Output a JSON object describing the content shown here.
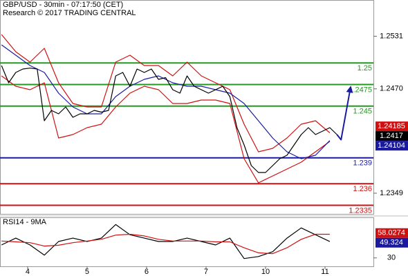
{
  "chart_data": [
    {
      "type": "line",
      "title": "GBP/USD - 30min - 07:17:50 (CET)",
      "subtitle": "Research © 2017 TRADING CENTRAL",
      "xlim": [
        0.535,
        6.814
      ],
      "ylim": [
        1.2325,
        1.2573
      ],
      "yticks": [
        1.2531,
        {
          "value": 1.247,
          "label": "1.2470"
        },
        1.2349
      ],
      "levels": [
        {
          "value": 1.25,
          "color": "#1f9a1f"
        },
        {
          "value": 1.2475,
          "color": "#1f9a1f"
        },
        {
          "value": 1.245,
          "color": "#1f9a1f"
        },
        {
          "value": 1.239,
          "color": "#1a1aa0"
        },
        {
          "value": 1.236,
          "color": "#d01010"
        },
        {
          "value": 1.2335,
          "color": "#d01010"
        }
      ],
      "series": [
        {
          "color": "#d01010",
          "x": [
            0.56,
            0.8,
            1.04,
            1.28,
            1.52,
            1.76,
            2.0,
            2.24,
            2.48,
            2.72,
            2.96,
            3.2,
            3.44,
            3.68,
            3.92,
            4.16,
            4.4,
            4.64,
            4.88,
            5.12,
            5.36,
            5.6,
            5.84,
            6.08
          ],
          "values": [
            1.2533,
            1.2513,
            1.2501,
            1.2517,
            1.2477,
            1.2453,
            1.2449,
            1.2449,
            1.2501,
            1.2509,
            1.2497,
            1.2497,
            1.2485,
            1.2501,
            1.2485,
            1.2477,
            1.2469,
            1.2429,
            1.2397,
            1.2401,
            1.2413,
            1.2429,
            1.2433,
            1.2419
          ]
        },
        {
          "color": "#d01010",
          "x": [
            0.56,
            0.8,
            1.04,
            1.28,
            1.52,
            1.76,
            2.0,
            2.24,
            2.48,
            2.72,
            2.96,
            3.2,
            3.44,
            3.68,
            3.92,
            4.16,
            4.4,
            4.64,
            4.88,
            5.12,
            5.36,
            5.6,
            5.84,
            6.08
          ],
          "values": [
            1.2485,
            1.2473,
            1.2469,
            1.2477,
            1.2413,
            1.2417,
            1.2425,
            1.2429,
            1.2449,
            1.2465,
            1.2473,
            1.2469,
            1.2453,
            1.2453,
            1.2457,
            1.2457,
            1.2453,
            1.2389,
            1.2361,
            1.2369,
            1.2377,
            1.2385,
            1.2397,
            1.2409
          ]
        },
        {
          "color": "#1a1aa0",
          "x": [
            0.56,
            0.8,
            1.04,
            1.28,
            1.52,
            1.76,
            2.0,
            2.24,
            2.48,
            2.72,
            2.96,
            3.2,
            3.44,
            3.68,
            3.92,
            4.16,
            4.4,
            4.64,
            4.88,
            5.12,
            5.36,
            5.6,
            5.84,
            6.08
          ],
          "values": [
            1.2521,
            1.2509,
            1.2497,
            1.2489,
            1.2465,
            1.2449,
            1.2441,
            1.2441,
            1.2461,
            1.2473,
            1.2481,
            1.2485,
            1.2477,
            1.2473,
            1.2473,
            1.2469,
            1.2465,
            1.2453,
            1.2433,
            1.2413,
            1.2397,
            1.2389,
            1.2393,
            1.241
          ]
        },
        {
          "color": "#000000",
          "x": [
            0.56,
            0.68,
            0.8,
            0.92,
            1.04,
            1.16,
            1.28,
            1.4,
            1.52,
            1.64,
            1.76,
            1.88,
            2.0,
            2.12,
            2.24,
            2.36,
            2.48,
            2.6,
            2.72,
            2.84,
            2.96,
            3.08,
            3.2,
            3.32,
            3.44,
            3.56,
            3.68,
            3.8,
            3.92,
            4.04,
            4.16,
            4.28,
            4.4,
            4.52,
            4.64,
            4.76,
            4.88,
            5.0,
            5.12,
            5.24,
            5.36,
            5.48,
            5.6,
            5.72,
            5.84,
            5.96,
            6.08,
            6.2
          ],
          "values": [
            1.2497,
            1.2477,
            1.2489,
            1.2493,
            1.2494,
            1.2493,
            1.2433,
            1.2445,
            1.2441,
            1.2449,
            1.2437,
            1.2441,
            1.2441,
            1.2445,
            1.2443,
            1.2445,
            1.2485,
            1.2489,
            1.2473,
            1.2493,
            1.2489,
            1.2493,
            1.2481,
            1.2483,
            1.2469,
            1.2465,
            1.2485,
            1.2473,
            1.2469,
            1.2465,
            1.2469,
            1.2473,
            1.2461,
            1.2425,
            1.2405,
            1.2381,
            1.2373,
            1.2373,
            1.2381,
            1.2389,
            1.2393,
            1.2405,
            1.2417,
            1.2425,
            1.2417,
            1.2421,
            1.2425,
            1.2417
          ]
        },
        {
          "color": "#1a1aa0",
          "arrow": true,
          "x": [
            6.2,
            6.27,
            6.43
          ],
          "values": [
            1.2417,
            1.2411,
            1.2472
          ]
        }
      ],
      "last_values": [
        {
          "value": 1.24185,
          "color": "#d01010"
        },
        {
          "value": 1.2417,
          "color": "#000000"
        },
        {
          "value": 1.24104,
          "color": "#1a1aa0"
        }
      ]
    },
    {
      "type": "line",
      "title": "RSI14 - 9MA",
      "xlim": [
        0.535,
        6.814
      ],
      "xticks": [
        {
          "value": 1,
          "label": "4"
        },
        {
          "value": 2,
          "label": "5"
        },
        {
          "value": 3,
          "label": "6"
        },
        {
          "value": 4,
          "label": "7"
        },
        {
          "value": 5,
          "label": "10"
        },
        {
          "value": 6,
          "label": "11"
        }
      ],
      "ylim": [
        20,
        78
      ],
      "yticks": [
        30
      ],
      "series": [
        {
          "color": "#000000",
          "x": [
            0.56,
            0.8,
            1.04,
            1.28,
            1.52,
            1.76,
            2.0,
            2.24,
            2.48,
            2.72,
            2.96,
            3.2,
            3.44,
            3.68,
            3.92,
            4.16,
            4.4,
            4.64,
            4.88,
            5.12,
            5.36,
            5.6,
            5.84,
            6.08
          ],
          "values": [
            45.3,
            53.4,
            45.3,
            33.2,
            49.4,
            53.4,
            49.4,
            53.4,
            69.5,
            57.4,
            53.4,
            49.4,
            49.4,
            53.4,
            49.4,
            45.3,
            53.4,
            29.2,
            31.6,
            37.3,
            53.4,
            65.5,
            57.4,
            49.3
          ]
        },
        {
          "color": "#d01010",
          "x": [
            0.56,
            0.8,
            1.04,
            1.28,
            1.52,
            1.76,
            2.0,
            2.24,
            2.48,
            2.72,
            2.96,
            3.2,
            3.44,
            3.68,
            3.92,
            4.16,
            4.4,
            4.64,
            4.88,
            5.12,
            5.36,
            5.6,
            5.84,
            6.08
          ],
          "values": [
            50,
            49,
            48,
            44,
            45,
            48,
            50,
            52,
            57,
            58,
            56,
            52,
            50,
            50,
            50,
            49,
            49,
            42,
            36,
            35,
            42,
            52,
            58,
            58
          ]
        }
      ],
      "last_values": [
        {
          "value": 58.0274,
          "color": "#d01010"
        },
        {
          "value": 49.324,
          "color": "#1a1aa0"
        }
      ]
    }
  ]
}
